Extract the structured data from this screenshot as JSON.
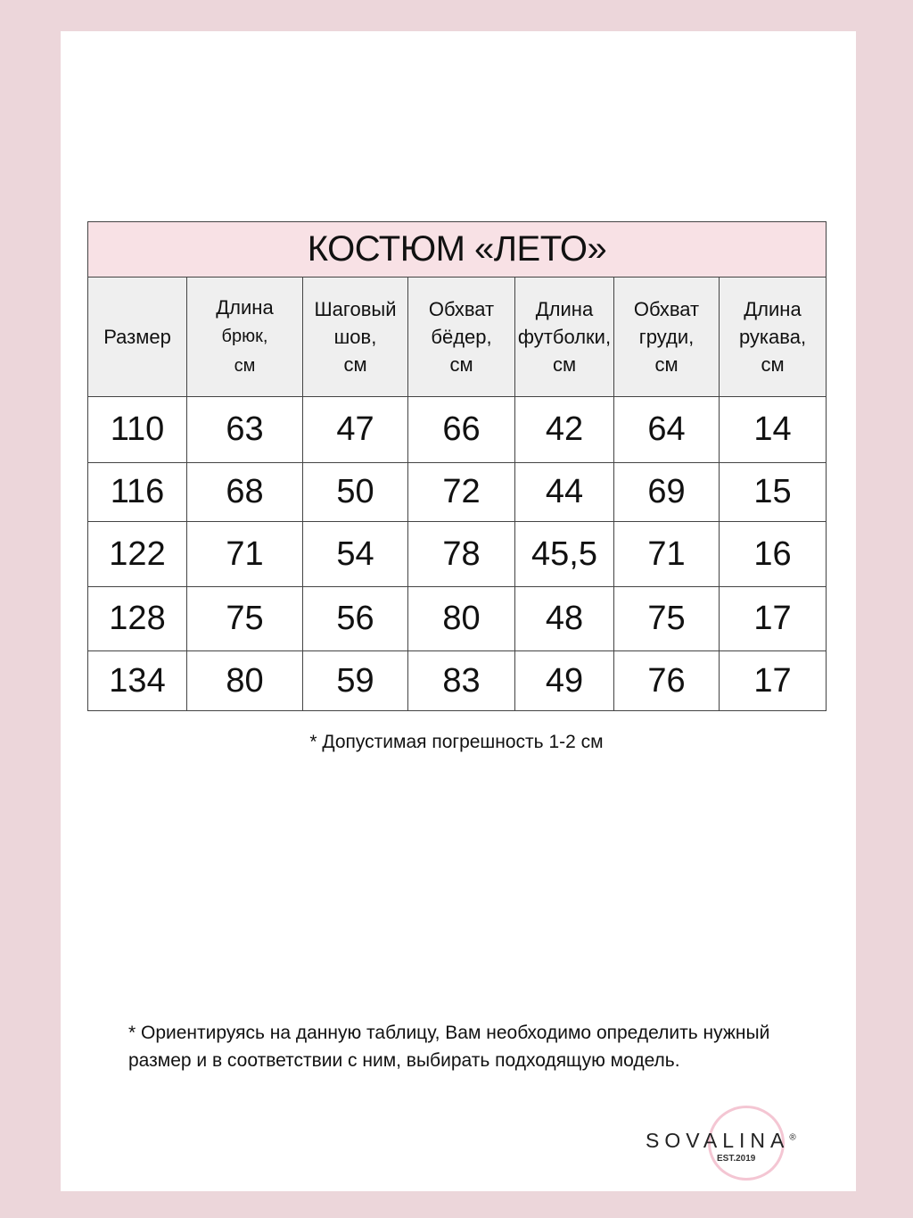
{
  "title": "КОСТЮМ «ЛЕТО»",
  "headers": [
    {
      "line1": "Размер",
      "line2": ""
    },
    {
      "line1": "Длина",
      "line2": "брюк,",
      "line3": "см"
    },
    {
      "line1": "Шаговый",
      "line2": "шов,",
      "line3": "см"
    },
    {
      "line1": "Обхват",
      "line2": "бёдер,",
      "line3": "см"
    },
    {
      "line1": "Длина",
      "line2": "футболки,",
      "line3": "см"
    },
    {
      "line1": "Обхват",
      "line2": "груди,",
      "line3": "см"
    },
    {
      "line1": "Длина",
      "line2": "рукава,",
      "line3": "см"
    }
  ],
  "rows": [
    [
      "110",
      "63",
      "47",
      "66",
      "42",
      "64",
      "14"
    ],
    [
      "116",
      "68",
      "50",
      "72",
      "44",
      "69",
      "15"
    ],
    [
      "122",
      "71",
      "54",
      "78",
      "45,5",
      "71",
      "16"
    ],
    [
      "128",
      "75",
      "56",
      "80",
      "48",
      "75",
      "17"
    ],
    [
      "134",
      "80",
      "59",
      "83",
      "49",
      "76",
      "17"
    ]
  ],
  "tolerance_note": "* Допустимая погрешность 1-2 см",
  "guidance_note": "* Ориентируясь на данную таблицу, Вам необходимо определить нужный размер и в соответствии с ним, выбирать подходящую модель.",
  "logo": {
    "brand": "SOVALINA",
    "registered": "®",
    "est": "EST.2019"
  },
  "colors": {
    "background": "#ecd6da",
    "title_bg": "#f8e1e5",
    "header_bg": "#efefef",
    "logo_ring": "#f4c6d3"
  }
}
